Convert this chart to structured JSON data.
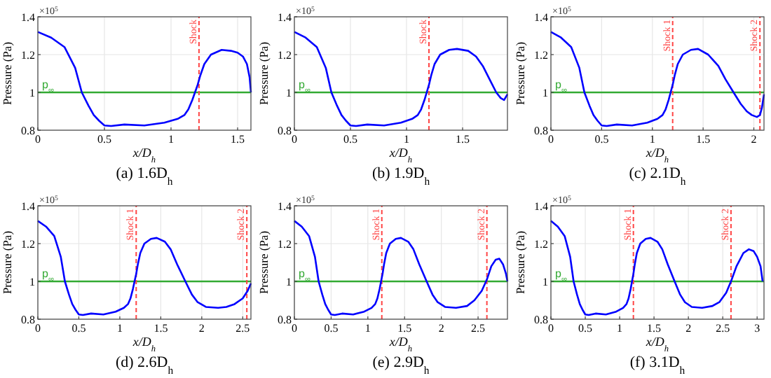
{
  "chart_data": [
    {
      "type": "line",
      "title": "(a) 1.6D$_{h}$",
      "xlabel": "x/D$_{h}$",
      "ylabel": "Pressure (Pa)",
      "annotations": [
        "×10$^{5}$"
      ],
      "xlim": [
        0,
        1.6
      ],
      "xticks": [
        0,
        0.5,
        1,
        1.5
      ],
      "ylim": [
        0.8,
        1.4
      ],
      "yticks": [
        0.8,
        1,
        1.2,
        1.4
      ],
      "grid": true,
      "series": [
        {
          "color": "#0000ff",
          "x": [
            0,
            0.1,
            0.2,
            0.28,
            0.33,
            0.38,
            0.42,
            0.46,
            0.5,
            0.55,
            0.65,
            0.8,
            0.95,
            1.05,
            1.1,
            1.13,
            1.16,
            1.18,
            1.2,
            1.22,
            1.25,
            1.3,
            1.38,
            1.45,
            1.5,
            1.54,
            1.57,
            1.59,
            1.6
          ],
          "values": [
            1.32,
            1.29,
            1.24,
            1.13,
            1.0,
            0.93,
            0.88,
            0.85,
            0.825,
            0.822,
            0.83,
            0.825,
            0.84,
            0.86,
            0.88,
            0.91,
            0.96,
            1.0,
            1.04,
            1.09,
            1.15,
            1.2,
            1.225,
            1.22,
            1.21,
            1.19,
            1.15,
            1.08,
            1.0
          ]
        }
      ],
      "ref_lines": [
        {
          "axis": "y",
          "value": 1,
          "label": "p$_{∞}$",
          "color": "#33aa33",
          "line_style": "solid"
        },
        {
          "axis": "x",
          "value": 1.21,
          "label": "Shock",
          "color": "#ff4444",
          "line_style": "dashed"
        }
      ]
    },
    {
      "type": "line",
      "title": "(b) 1.9D$_{h}$",
      "xlabel": "x/D$_{h}$",
      "ylabel": "Pressure (Pa)",
      "annotations": [
        "×10$^{5}$"
      ],
      "xlim": [
        0,
        1.9
      ],
      "xticks": [
        0,
        0.5,
        1,
        1.5
      ],
      "ylim": [
        0.8,
        1.4
      ],
      "yticks": [
        0.8,
        1,
        1.2,
        1.4
      ],
      "grid": true,
      "series": [
        {
          "color": "#0000ff",
          "x": [
            0,
            0.1,
            0.2,
            0.28,
            0.33,
            0.38,
            0.42,
            0.46,
            0.5,
            0.55,
            0.65,
            0.8,
            0.95,
            1.05,
            1.1,
            1.13,
            1.16,
            1.18,
            1.2,
            1.22,
            1.25,
            1.3,
            1.38,
            1.45,
            1.55,
            1.62,
            1.68,
            1.74,
            1.8,
            1.84,
            1.87,
            1.9
          ],
          "values": [
            1.32,
            1.29,
            1.24,
            1.13,
            1.0,
            0.93,
            0.88,
            0.85,
            0.825,
            0.822,
            0.83,
            0.825,
            0.84,
            0.86,
            0.88,
            0.91,
            0.96,
            1.0,
            1.04,
            1.09,
            1.15,
            1.2,
            1.225,
            1.23,
            1.22,
            1.19,
            1.14,
            1.07,
            1.0,
            0.97,
            0.96,
            0.99
          ]
        }
      ],
      "ref_lines": [
        {
          "axis": "y",
          "value": 1,
          "label": "p$_{∞}$",
          "color": "#33aa33",
          "line_style": "solid"
        },
        {
          "axis": "x",
          "value": 1.2,
          "label": "Shock",
          "color": "#ff4444",
          "line_style": "dashed"
        }
      ]
    },
    {
      "type": "line",
      "title": "(c) 2.1D$_{h}$",
      "xlabel": "x/D$_{h}$",
      "ylabel": "Pressure (Pa)",
      "annotations": [
        "×10$^{5}$"
      ],
      "xlim": [
        0,
        2.1
      ],
      "xticks": [
        0,
        0.5,
        1,
        1.5,
        2
      ],
      "ylim": [
        0.8,
        1.4
      ],
      "yticks": [
        0.8,
        1,
        1.2,
        1.4
      ],
      "grid": true,
      "series": [
        {
          "color": "#0000ff",
          "x": [
            0,
            0.1,
            0.2,
            0.28,
            0.33,
            0.38,
            0.42,
            0.46,
            0.5,
            0.55,
            0.65,
            0.8,
            0.95,
            1.05,
            1.1,
            1.13,
            1.16,
            1.18,
            1.2,
            1.22,
            1.25,
            1.3,
            1.38,
            1.45,
            1.55,
            1.65,
            1.72,
            1.8,
            1.87,
            1.93,
            1.98,
            2.03,
            2.06,
            2.08,
            2.1
          ],
          "values": [
            1.32,
            1.29,
            1.24,
            1.13,
            1.0,
            0.93,
            0.88,
            0.85,
            0.825,
            0.822,
            0.83,
            0.825,
            0.84,
            0.86,
            0.88,
            0.91,
            0.96,
            1.0,
            1.04,
            1.09,
            1.15,
            1.2,
            1.225,
            1.23,
            1.2,
            1.14,
            1.07,
            1.0,
            0.94,
            0.9,
            0.88,
            0.87,
            0.88,
            0.92,
            0.99
          ]
        }
      ],
      "ref_lines": [
        {
          "axis": "y",
          "value": 1,
          "label": "p$_{∞}$",
          "color": "#33aa33",
          "line_style": "solid"
        },
        {
          "axis": "x",
          "value": 1.2,
          "label": "Shock 1",
          "color": "#ff4444",
          "line_style": "dashed"
        },
        {
          "axis": "x",
          "value": 2.06,
          "label": "Shock 2",
          "color": "#ff4444",
          "line_style": "dashed"
        }
      ]
    },
    {
      "type": "line",
      "title": "(d) 2.6D$_{h}$",
      "xlabel": "x/D$_{h}$",
      "ylabel": "Pressure (Pa)",
      "annotations": [
        "×10$^{5}$"
      ],
      "xlim": [
        0,
        2.6
      ],
      "xticks": [
        0,
        0.5,
        1,
        1.5,
        2,
        2.5
      ],
      "ylim": [
        0.8,
        1.4
      ],
      "yticks": [
        0.8,
        1,
        1.2,
        1.4
      ],
      "grid": true,
      "series": [
        {
          "color": "#0000ff",
          "x": [
            0,
            0.1,
            0.2,
            0.28,
            0.33,
            0.38,
            0.42,
            0.46,
            0.5,
            0.55,
            0.65,
            0.8,
            0.95,
            1.05,
            1.1,
            1.13,
            1.16,
            1.18,
            1.2,
            1.22,
            1.25,
            1.3,
            1.38,
            1.45,
            1.55,
            1.62,
            1.7,
            1.8,
            1.88,
            1.95,
            2.05,
            2.2,
            2.3,
            2.4,
            2.5,
            2.56,
            2.6
          ],
          "values": [
            1.32,
            1.29,
            1.24,
            1.13,
            1.0,
            0.93,
            0.88,
            0.85,
            0.825,
            0.822,
            0.83,
            0.825,
            0.84,
            0.86,
            0.88,
            0.91,
            0.96,
            1.0,
            1.04,
            1.09,
            1.15,
            1.2,
            1.225,
            1.23,
            1.21,
            1.17,
            1.09,
            1.0,
            0.93,
            0.89,
            0.865,
            0.86,
            0.865,
            0.88,
            0.91,
            0.95,
            0.99
          ]
        }
      ],
      "ref_lines": [
        {
          "axis": "y",
          "value": 1,
          "label": "p$_{∞}$",
          "color": "#33aa33",
          "line_style": "solid"
        },
        {
          "axis": "x",
          "value": 1.2,
          "label": "Shock 1",
          "color": "#ff4444",
          "line_style": "dashed"
        },
        {
          "axis": "x",
          "value": 2.55,
          "label": "Shock 2",
          "color": "#ff4444",
          "line_style": "dashed"
        }
      ]
    },
    {
      "type": "line",
      "title": "(e) 2.9D$_{h}$",
      "xlabel": "x/D$_{h}$",
      "ylabel": "Pressure (Pa)",
      "annotations": [
        "×10$^{5}$"
      ],
      "xlim": [
        0,
        2.9
      ],
      "xticks": [
        0,
        0.5,
        1,
        1.5,
        2,
        2.5
      ],
      "ylim": [
        0.8,
        1.4
      ],
      "yticks": [
        0.8,
        1,
        1.2,
        1.4
      ],
      "grid": true,
      "series": [
        {
          "color": "#0000ff",
          "x": [
            0,
            0.1,
            0.2,
            0.28,
            0.33,
            0.38,
            0.42,
            0.46,
            0.5,
            0.55,
            0.65,
            0.8,
            0.95,
            1.05,
            1.1,
            1.13,
            1.16,
            1.18,
            1.2,
            1.22,
            1.25,
            1.3,
            1.38,
            1.45,
            1.55,
            1.62,
            1.7,
            1.8,
            1.88,
            1.95,
            2.05,
            2.2,
            2.35,
            2.45,
            2.55,
            2.62,
            2.68,
            2.74,
            2.79,
            2.84,
            2.88,
            2.9
          ],
          "values": [
            1.32,
            1.29,
            1.24,
            1.13,
            1.0,
            0.93,
            0.88,
            0.85,
            0.825,
            0.822,
            0.83,
            0.825,
            0.84,
            0.86,
            0.88,
            0.91,
            0.96,
            1.0,
            1.04,
            1.09,
            1.15,
            1.2,
            1.225,
            1.23,
            1.21,
            1.17,
            1.09,
            1.0,
            0.93,
            0.89,
            0.865,
            0.86,
            0.87,
            0.9,
            0.95,
            1.01,
            1.08,
            1.115,
            1.12,
            1.09,
            1.04,
            1.0
          ]
        }
      ],
      "ref_lines": [
        {
          "axis": "y",
          "value": 1,
          "label": "p$_{∞}$",
          "color": "#33aa33",
          "line_style": "solid"
        },
        {
          "axis": "x",
          "value": 1.19,
          "label": "Shock 1",
          "color": "#ff4444",
          "line_style": "dashed"
        },
        {
          "axis": "x",
          "value": 2.62,
          "label": "Shock 2",
          "color": "#ff4444",
          "line_style": "dashed"
        }
      ]
    },
    {
      "type": "line",
      "title": "(f) 3.1D$_{h}$",
      "xlabel": "x/D$_{h}$",
      "ylabel": "Pressure (Pa)",
      "annotations": [
        "×10$^{5}$"
      ],
      "xlim": [
        0,
        3.1
      ],
      "xticks": [
        0,
        0.5,
        1,
        1.5,
        2,
        2.5,
        3
      ],
      "ylim": [
        0.8,
        1.4
      ],
      "yticks": [
        0.8,
        1,
        1.2,
        1.4
      ],
      "grid": true,
      "series": [
        {
          "color": "#0000ff",
          "x": [
            0,
            0.1,
            0.2,
            0.28,
            0.33,
            0.38,
            0.42,
            0.46,
            0.5,
            0.55,
            0.65,
            0.8,
            0.95,
            1.05,
            1.1,
            1.13,
            1.16,
            1.18,
            1.2,
            1.22,
            1.25,
            1.3,
            1.38,
            1.45,
            1.55,
            1.62,
            1.7,
            1.8,
            1.88,
            1.95,
            2.05,
            2.2,
            2.35,
            2.45,
            2.55,
            2.62,
            2.7,
            2.8,
            2.88,
            2.95,
            3.0,
            3.05,
            3.08
          ],
          "values": [
            1.32,
            1.29,
            1.24,
            1.13,
            1.0,
            0.93,
            0.88,
            0.85,
            0.825,
            0.822,
            0.83,
            0.825,
            0.84,
            0.86,
            0.88,
            0.91,
            0.96,
            1.0,
            1.04,
            1.09,
            1.15,
            1.2,
            1.225,
            1.23,
            1.21,
            1.17,
            1.09,
            1.0,
            0.93,
            0.89,
            0.865,
            0.86,
            0.87,
            0.89,
            0.94,
            1.0,
            1.08,
            1.15,
            1.17,
            1.16,
            1.13,
            1.08,
            1.0
          ]
        }
      ],
      "ref_lines": [
        {
          "axis": "y",
          "value": 1,
          "label": "p$_{∞}$",
          "color": "#33aa33",
          "line_style": "solid"
        },
        {
          "axis": "x",
          "value": 1.2,
          "label": "Shock 1",
          "color": "#ff4444",
          "line_style": "dashed"
        },
        {
          "axis": "x",
          "value": 2.62,
          "label": "Shock 2",
          "color": "#ff4444",
          "line_style": "dashed"
        }
      ]
    }
  ]
}
